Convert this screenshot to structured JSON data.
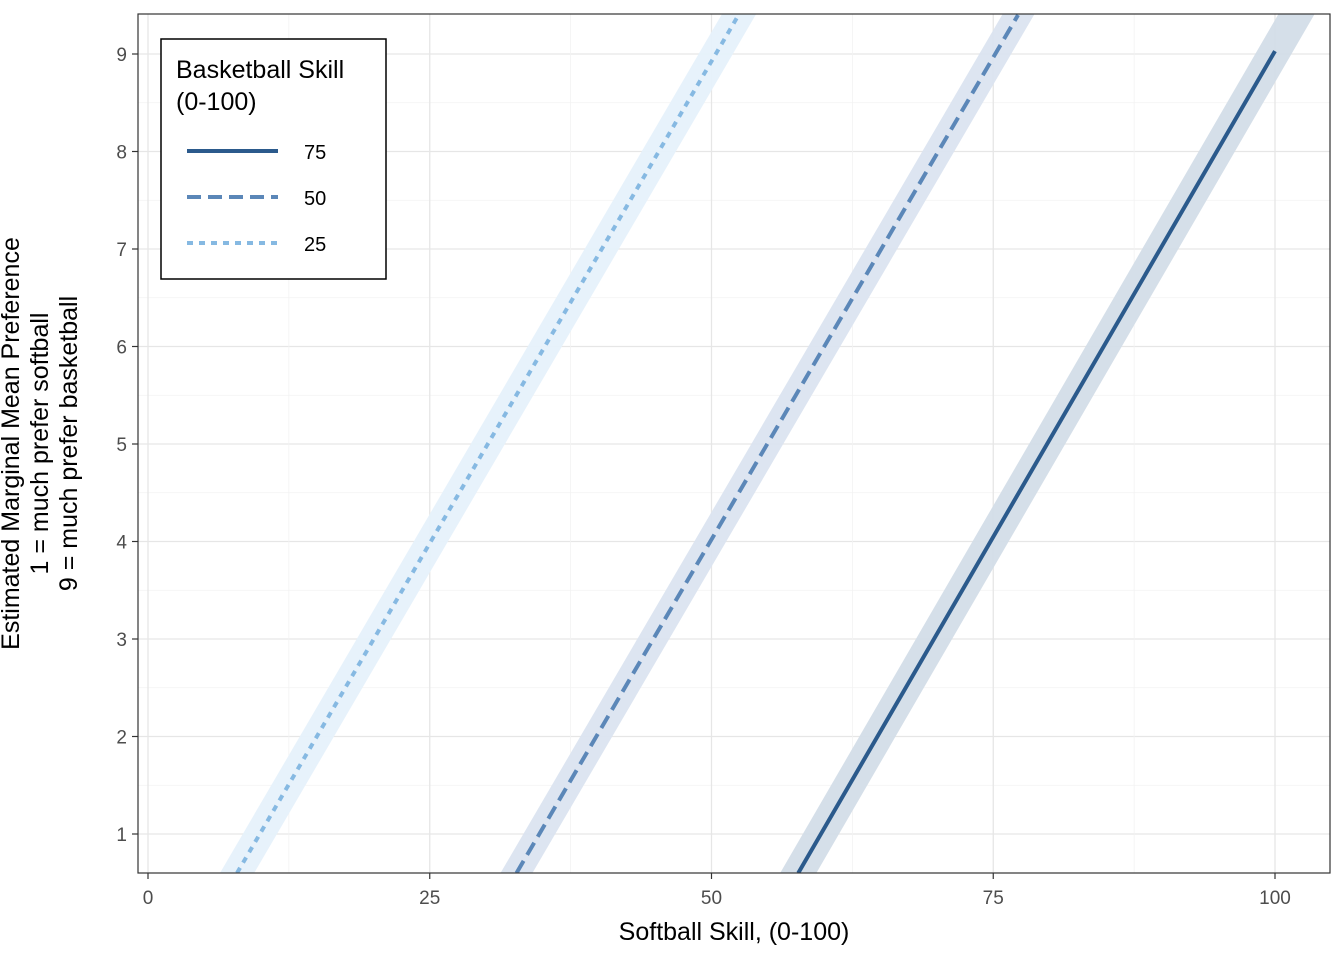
{
  "chart_data": {
    "type": "line",
    "title": "",
    "xlabel": "Softball Skill, (0-100)",
    "ylabel_lines": [
      "Estimated Marginal Mean Preference",
      "1 = much prefer softball",
      "9 = much prefer basketball"
    ],
    "xlim": [
      -0.5,
      105
    ],
    "ylim": [
      0.6,
      9.4
    ],
    "x_ticks": [
      0,
      25,
      50,
      75,
      100
    ],
    "x_tick_labels": [
      "0",
      "25",
      "50",
      "75",
      "100"
    ],
    "y_ticks": [
      1,
      2,
      3,
      4,
      5,
      6,
      7,
      8,
      9
    ],
    "y_tick_labels": [
      "1",
      "2",
      "3",
      "4",
      "5",
      "6",
      "7",
      "8",
      "9"
    ],
    "grid": true,
    "legend": {
      "title_lines": [
        "Basketball Skill",
        "(0-100)"
      ],
      "position": "top-left"
    },
    "series": [
      {
        "name": "75",
        "color": "#2b5a8c",
        "dash": "solid",
        "x": [
          57.7,
          100
        ],
        "y": [
          0.6,
          9.03
        ],
        "band_halfwidth": 0.32
      },
      {
        "name": "50",
        "color": "#5b87b8",
        "dash": "dashed",
        "x": [
          32.7,
          77.2
        ],
        "y": [
          0.6,
          9.4
        ],
        "band_halfwidth": 0.28
      },
      {
        "name": "25",
        "color": "#86b9e2",
        "dash": "dotted",
        "x": [
          7.9,
          52.4
        ],
        "y": [
          0.6,
          9.4
        ],
        "band_halfwidth": 0.3
      }
    ],
    "band_colors": {
      "75": "#d3dde8",
      "50": "#dbe4f0",
      "25": "#e6f1fb"
    }
  }
}
